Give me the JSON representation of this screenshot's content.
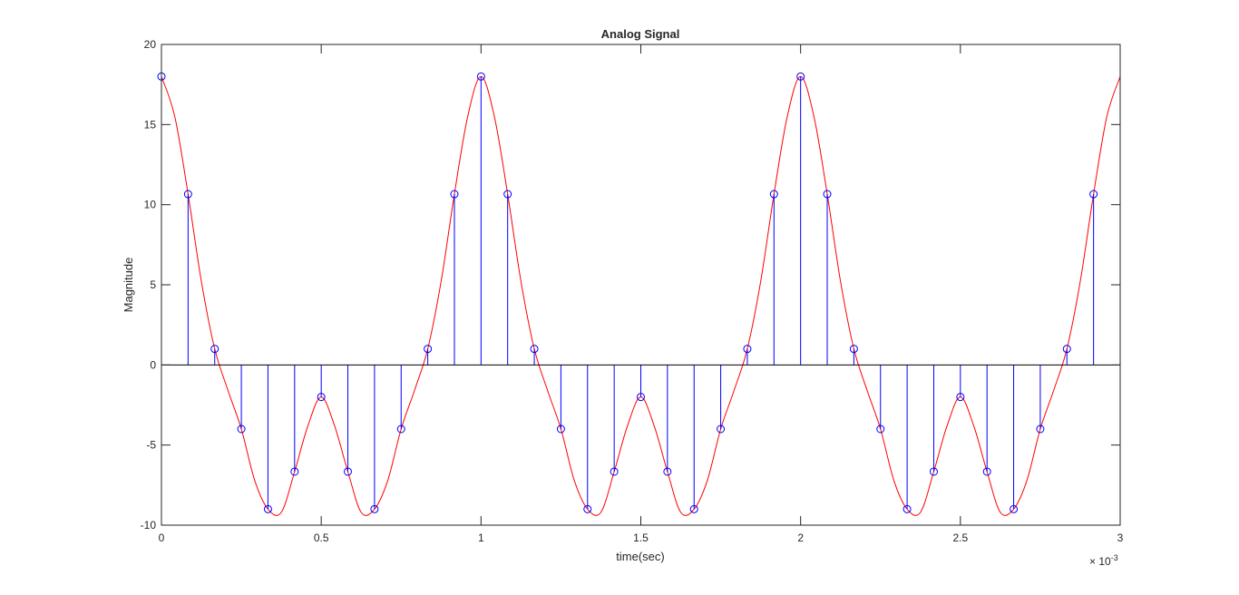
{
  "chart_data": {
    "type": "line",
    "title": "Analog Signal",
    "xlabel": "time(sec)",
    "ylabel": "Magnitude",
    "xlim": [
      0,
      3
    ],
    "ylim": [
      -10,
      20
    ],
    "x_scale_label": "× 10",
    "x_scale_exponent": "-3",
    "x_ticks": [
      {
        "value": 0,
        "label": "0"
      },
      {
        "value": 0.5,
        "label": "0.5"
      },
      {
        "value": 1,
        "label": "1"
      },
      {
        "value": 1.5,
        "label": "1.5"
      },
      {
        "value": 2,
        "label": "2"
      },
      {
        "value": 2.5,
        "label": "2.5"
      },
      {
        "value": 3,
        "label": "3"
      }
    ],
    "y_ticks": [
      {
        "value": -10,
        "label": "-10"
      },
      {
        "value": -5,
        "label": "-5"
      },
      {
        "value": 0,
        "label": "0"
      },
      {
        "value": 5,
        "label": "5"
      },
      {
        "value": 10,
        "label": "10"
      },
      {
        "value": 15,
        "label": "15"
      },
      {
        "value": 20,
        "label": "20"
      }
    ],
    "grid": false,
    "series": [
      {
        "style": "line",
        "color": "#ff0000",
        "x": [
          0,
          0.0417,
          0.0833,
          0.125,
          0.1667,
          0.2083,
          0.25,
          0.2917,
          0.3333,
          0.375,
          0.4167,
          0.4583,
          0.5,
          0.5417,
          0.5833,
          0.625,
          0.6667,
          0.7083,
          0.75,
          0.7917,
          0.8333,
          0.875,
          0.9167,
          0.9583,
          1.0,
          1.0417,
          1.0833,
          1.125,
          1.1667,
          1.2083,
          1.25,
          1.2917,
          1.3333,
          1.375,
          1.4167,
          1.4583,
          1.5,
          1.5417,
          1.5833,
          1.625,
          1.6667,
          1.7083,
          1.75,
          1.7917,
          1.8333,
          1.875,
          1.9167,
          1.9583,
          2.0,
          2.0417,
          2.0833,
          2.125,
          2.1667,
          2.2083,
          2.25,
          2.2917,
          2.3333,
          2.375,
          2.4167,
          2.4583,
          2.5,
          2.5417,
          2.5833,
          2.625,
          2.6667,
          2.7083,
          2.75,
          2.7917,
          2.8333,
          2.875,
          2.9167,
          2.9583,
          3.0
        ],
        "values": [
          18.0,
          15.5,
          10.66,
          5.2,
          1.0,
          -1.6,
          -4.0,
          -7.2,
          -9.0,
          -9.2,
          -6.66,
          -3.8,
          -2.0,
          -3.8,
          -6.66,
          -9.2,
          -9.0,
          -7.2,
          -4.0,
          -1.6,
          1.0,
          5.2,
          10.66,
          15.5,
          18.0,
          15.5,
          10.66,
          5.2,
          1.0,
          -1.6,
          -4.0,
          -7.2,
          -9.0,
          -9.2,
          -6.66,
          -3.8,
          -2.0,
          -3.8,
          -6.66,
          -9.2,
          -9.0,
          -7.2,
          -4.0,
          -1.6,
          1.0,
          5.2,
          10.66,
          15.5,
          18.0,
          15.5,
          10.66,
          5.2,
          1.0,
          -1.6,
          -4.0,
          -7.2,
          -9.0,
          -9.2,
          -6.66,
          -3.8,
          -2.0,
          -3.8,
          -6.66,
          -9.2,
          -9.0,
          -7.2,
          -4.0,
          -1.6,
          1.0,
          5.2,
          10.66,
          15.5,
          18.0
        ]
      },
      {
        "style": "stem",
        "color": "#0000ff",
        "x": [
          0,
          0.0833,
          0.1667,
          0.25,
          0.3333,
          0.4167,
          0.5,
          0.5833,
          0.6667,
          0.75,
          0.8333,
          0.9167,
          1.0,
          1.0833,
          1.1667,
          1.25,
          1.3333,
          1.4167,
          1.5,
          1.5833,
          1.6667,
          1.75,
          1.8333,
          1.9167,
          2.0,
          2.0833,
          2.1667,
          2.25,
          2.3333,
          2.4167,
          2.5,
          2.5833,
          2.6667,
          2.75,
          2.8333,
          2.9167
        ],
        "values": [
          18.0,
          10.66,
          1.0,
          -4.0,
          -9.0,
          -6.66,
          -2.0,
          -6.66,
          -9.0,
          -4.0,
          1.0,
          10.66,
          18.0,
          10.66,
          1.0,
          -4.0,
          -9.0,
          -6.66,
          -2.0,
          -6.66,
          -9.0,
          -4.0,
          1.0,
          10.66,
          18.0,
          10.66,
          1.0,
          -4.0,
          -9.0,
          -6.66,
          -2.0,
          -6.66,
          -9.0,
          -4.0,
          1.0,
          10.66
        ]
      }
    ]
  }
}
